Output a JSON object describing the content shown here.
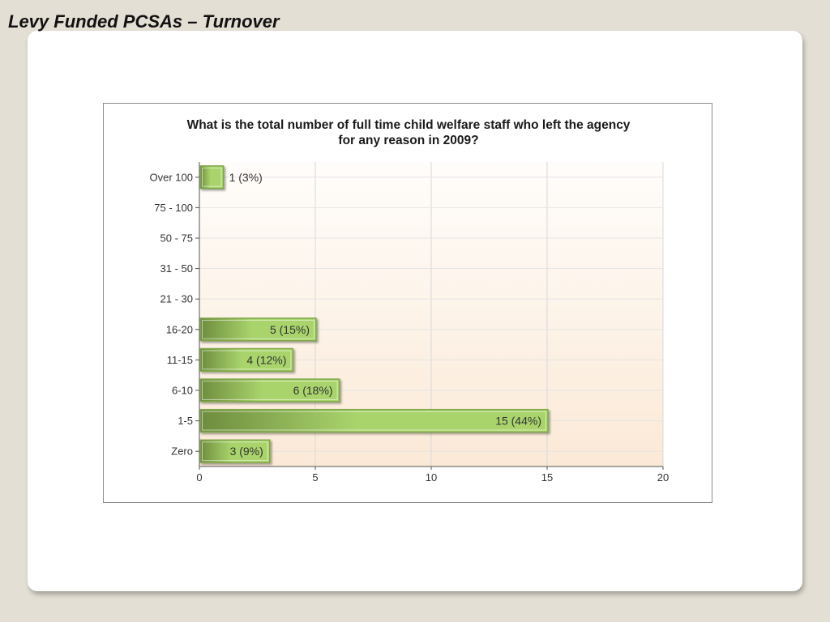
{
  "slide": {
    "title": "Levy Funded PCSAs – Turnover"
  },
  "chart_data": {
    "type": "bar",
    "orientation": "horizontal",
    "title_lines": [
      "What is the total number of full time child welfare staff who left the agency",
      "for any reason in 2009?"
    ],
    "categories": [
      "Over 100",
      "75 - 100",
      "50 - 75",
      "31 - 50",
      "21 - 30",
      "16-20",
      "11-15",
      "6-10",
      "1-5",
      "Zero"
    ],
    "values": [
      1,
      0,
      0,
      0,
      0,
      5,
      4,
      6,
      15,
      3
    ],
    "data_labels": [
      "1 (3%)",
      "",
      "",
      "",
      "",
      "5 (15%)",
      "4 (12%)",
      "6 (18%)",
      "15 (44%)",
      "3 (9%)"
    ],
    "xlim": [
      0,
      20
    ],
    "xticks": [
      0,
      5,
      10,
      15,
      20
    ],
    "xlabel": "",
    "ylabel": "",
    "grid": true,
    "colors": {
      "bar_dark": "#6e8c3e",
      "bar_light": "#a9d46c",
      "bar_border": "#7fa84a",
      "plot_bg_top": "#fffdfb",
      "plot_bg_bottom": "#fbe9d6",
      "grid": "#d8d8d8"
    }
  }
}
